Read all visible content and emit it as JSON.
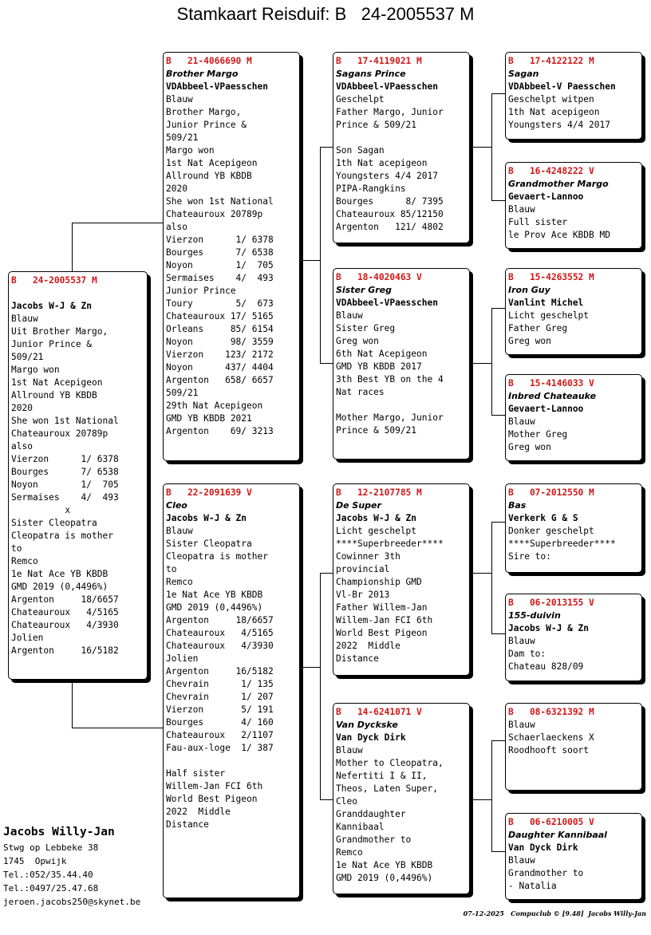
{
  "title": "Stamkaart Reisduif: B   24-2005537 M",
  "cards": {
    "main": {
      "header": "B   24-2005537 M",
      "name": "",
      "breeder": "Jacobs W-J & Zn",
      "lines": [
        "Blauw",
        "Uit Brother Margo,",
        "Junior Prince &",
        "509/21",
        "Margo won",
        "1st Nat Acepigeon",
        "Allround YB KBDB",
        "2020",
        "She won 1st National",
        "Chateauroux 20789p",
        "also",
        "Vierzon      1/ 6378",
        "Bourges      7/ 6538",
        "Noyon        1/  705",
        "Sermaises    4/  493",
        "          x",
        "Sister Cleopatra",
        "Cleopatra is mother",
        "to",
        "Remco",
        "1e Nat Ace YB KBDB",
        "GMD 2019 (0,4496%)",
        "Argenton     18/6657",
        "Chateauroux   4/5165",
        "Chateauroux   4/3930",
        "Jolien",
        "Argenton     16/5182"
      ]
    },
    "sire": {
      "header": "B   21-4066690 M",
      "name": "Brother Margo",
      "breeder": "VDAbbeel-VPaesschen",
      "lines": [
        "Blauw",
        "Brother Margo,",
        "Junior Prince &",
        "509/21",
        "Margo won",
        "1st Nat Acepigeon",
        "Allround YB KBDB",
        "2020",
        "She won 1st National",
        "Chateauroux 20789p",
        "also",
        "Vierzon      1/ 6378",
        "Bourges      7/ 6538",
        "Noyon        1/  705",
        "Sermaises    4/  493",
        "Junior Prince",
        "Toury        5/  673",
        "Chateauroux 17/ 5165",
        "Orleans     85/ 6154",
        "Noyon       98/ 3559",
        "Vierzon    123/ 2172",
        "Noyon      437/ 4404",
        "Argenton   658/ 6657",
        "509/21",
        "29th Nat Acepigeon",
        "GMD YB KBDB 2021",
        "Argenton    69/ 3213"
      ]
    },
    "dam": {
      "header": "B   22-2091639 V",
      "name": "Cleo",
      "breeder": "Jacobs W-J & Zn",
      "lines": [
        "Blauw",
        "Sister Cleopatra",
        "Cleopatra is mother",
        "to",
        "Remco",
        "1e Nat Ace YB KBDB",
        "GMD 2019 (0,4496%)",
        "Argenton     18/6657",
        "Chateauroux   4/5165",
        "Chateauroux   4/3930",
        "Jolien",
        "Argenton     16/5182",
        "Chevrain      1/ 135",
        "Chevrain      1/ 207",
        "Vierzon       5/ 191",
        "Bourges       4/ 160",
        "Chateauroux   2/1107",
        "Fau-aux-loge  1/ 387",
        "",
        "Half sister",
        "Willem-Jan FCI 6th",
        "World Best Pigeon",
        "2022  Middle",
        "Distance"
      ]
    },
    "ss": {
      "header": "B   17-4119021 M",
      "name": "Sagans Prince",
      "breeder": "VDAbbeel-VPaesschen",
      "lines": [
        "Geschelpt",
        "Father Margo, Junior",
        "Prince & 509/21",
        "",
        "Son Sagan",
        "1th Nat acepigeon",
        "Youngsters 4/4 2017",
        "PIPA-Rangkins",
        "Bourges      8/ 7395",
        "Chateauroux 85/12150",
        "Argenton   121/ 4802"
      ]
    },
    "sd": {
      "header": "B   18-4020463 V",
      "name": "Sister Greg",
      "breeder": "VDAbbeel-VPaesschen",
      "lines": [
        "Blauw",
        "Sister Greg",
        "Greg won",
        "6th Nat Acepigeon",
        "GMD YB KBDB 2017",
        "3th Best YB on the 4",
        "Nat races",
        "",
        "Mother Margo, Junior",
        "Prince & 509/21"
      ]
    },
    "ds": {
      "header": "B   12-2107785 M",
      "name": "De Super",
      "breeder": "Jacobs W-J & Zn",
      "lines": [
        "Licht geschelpt",
        "****Superbreeder****",
        "Cowinner 3th",
        "provincial",
        "Championship GMD",
        "Vl-Br 2013",
        "Father Willem-Jan",
        "Willem-Jan FCI 6th",
        "World Best Pigeon",
        "2022  Middle",
        "Distance"
      ]
    },
    "dd": {
      "header": "B   14-6241071 V",
      "name": "Van Dyckske",
      "breeder": "Van Dyck Dirk",
      "lines": [
        "Blauw",
        "Mother to Cleopatra,",
        "Nefertiti I & II,",
        "Theos, Laten Super,",
        "Cleo",
        "Granddaughter",
        "Kannibaal",
        "Grandmother to",
        "Remco",
        "1e Nat Ace YB KBDB",
        "GMD 2019 (0,4496%)"
      ]
    },
    "sss": {
      "header": "B   17-4122122 M",
      "name": "Sagan",
      "breeder": "VDAbbeel-V Paesschen",
      "lines": [
        "Geschelpt witpen",
        "1th Nat acepigeon",
        "Youngsters 4/4 2017"
      ]
    },
    "ssd": {
      "header": "B   16-4248222 V",
      "name": "Grandmother Margo",
      "breeder": "Gevaert-Lannoo",
      "lines": [
        "Blauw",
        "Full sister",
        "le Prov Ace KBDB MD"
      ]
    },
    "sds": {
      "header": "B   15-4263552 M",
      "name": "Iron Guy",
      "breeder": "Vanlint Michel",
      "lines": [
        "Licht geschelpt",
        "Father Greg",
        "Greg won"
      ]
    },
    "sdd": {
      "header": "B   15-4146033 V",
      "name": "Inbred Chateauke",
      "breeder": "Gevaert-Lannoo",
      "lines": [
        "Blauw",
        "Mother Greg",
        "Greg won"
      ]
    },
    "dss": {
      "header": "B   07-2012550 M",
      "name": "Bas",
      "breeder": "Verkerk G & S",
      "lines": [
        "Donker geschelpt",
        "****Superbreeder****",
        "Sire to:"
      ]
    },
    "dsd": {
      "header": "B   06-2013155 V",
      "name": "155-duivin",
      "breeder": "Jacobs W-J & Zn",
      "lines": [
        "Blauw",
        "Dam to:",
        "Chateau 828/09"
      ]
    },
    "dds": {
      "header": "B   08-6321392 M",
      "name": "",
      "breeder": "",
      "lines": [
        "Blauw",
        "Schaerlaeckens X",
        "Roodhooft soort"
      ]
    },
    "ddd": {
      "header": "B   06-6210005 V",
      "name": "Daughter Kannibaal",
      "breeder": "Van Dyck Dirk",
      "lines": [
        "Blauw",
        "Grandmother to",
        "- Natalia"
      ]
    }
  },
  "owner": {
    "name": "Jacobs Willy-Jan",
    "lines": [
      "Stwg op Lebbeke 38",
      "1745  Opwijk",
      "Tel.:052/35.44.40",
      "Tel.:0497/25.47.68",
      "jeroen.jacobs250@skynet.be"
    ]
  },
  "footer": "07-12-2025   Compuclub © [9.48]  Jacobs Willy-Jan"
}
